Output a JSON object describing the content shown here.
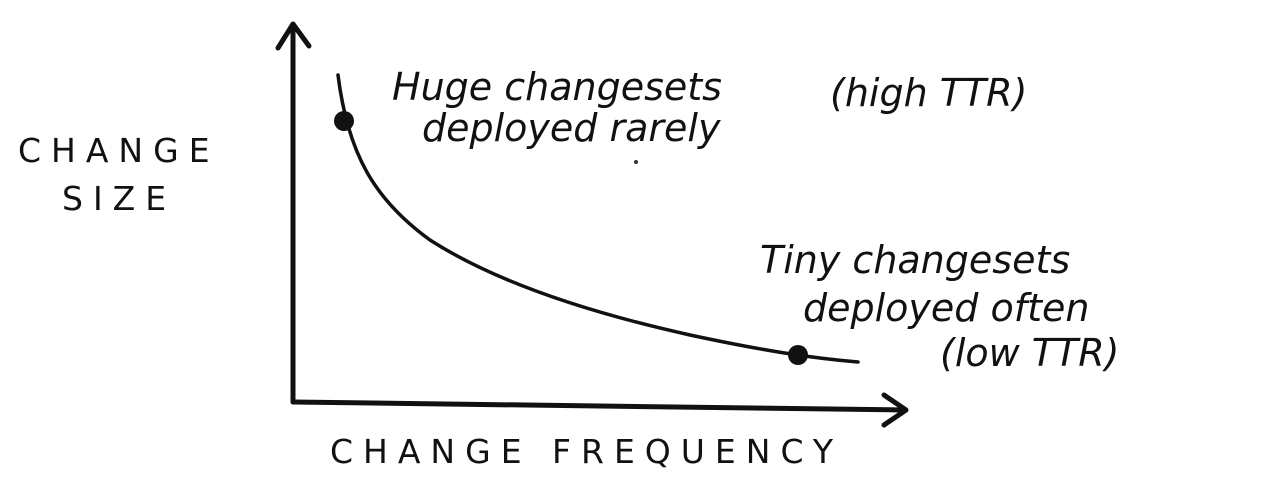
{
  "axes": {
    "y_label_line1": "CHANGE",
    "y_label_line2": "SIZE",
    "x_label": "CHANGE FREQUENCY"
  },
  "annotations": {
    "top_left": {
      "line1": "Huge changesets",
      "line1_suffix": "(high TTR)",
      "line2": "deployed rarely"
    },
    "bottom_right": {
      "line1": "Tiny changesets",
      "line2": "deployed often",
      "line3": "(low TTR)"
    }
  },
  "colors": {
    "ink": "#111111",
    "background": "#ffffff"
  }
}
